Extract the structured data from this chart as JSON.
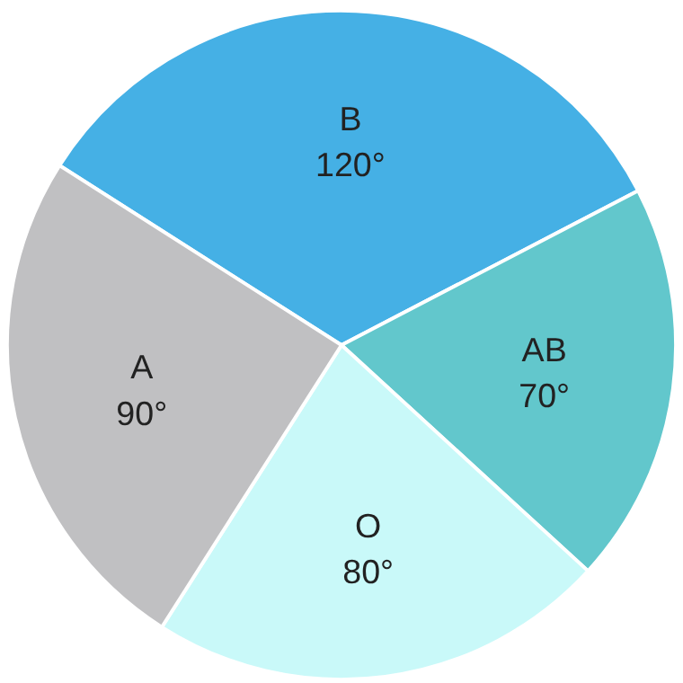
{
  "chart_data": {
    "type": "pie",
    "categories": [
      "B",
      "AB",
      "O",
      "A"
    ],
    "values": [
      120,
      70,
      80,
      90
    ],
    "value_labels": [
      "120°",
      "70°",
      "80°",
      "90°"
    ],
    "colors": [
      "#45b0e5",
      "#62c7cc",
      "#c9f9f9",
      "#c0c0c2"
    ],
    "legend": false
  }
}
